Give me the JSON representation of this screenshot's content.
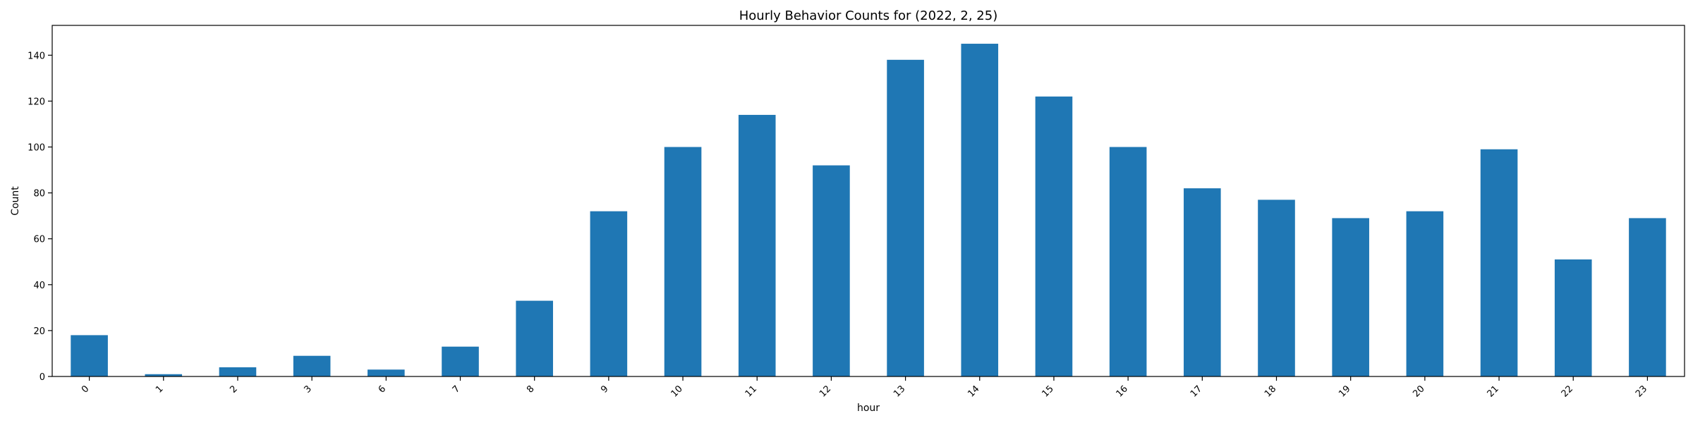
{
  "chart_data": {
    "type": "bar",
    "title": "Hourly Behavior Counts for (2022, 2, 25)",
    "xlabel": "hour",
    "ylabel": "Count",
    "categories": [
      "0",
      "1",
      "2",
      "3",
      "6",
      "7",
      "8",
      "9",
      "10",
      "11",
      "12",
      "13",
      "14",
      "15",
      "16",
      "17",
      "18",
      "19",
      "20",
      "21",
      "22",
      "23"
    ],
    "values": [
      18,
      1,
      4,
      9,
      3,
      13,
      33,
      72,
      100,
      114,
      92,
      138,
      145,
      122,
      100,
      82,
      77,
      69,
      72,
      99,
      51,
      69
    ],
    "ylim": [
      0,
      153
    ],
    "yticks": [
      0,
      20,
      40,
      60,
      80,
      100,
      120,
      140
    ],
    "ytick_labels": [
      "0",
      "20",
      "40",
      "60",
      "80",
      "100",
      "120",
      "140"
    ],
    "bar_color": "#1f77b4",
    "grid": false,
    "legend": false
  }
}
